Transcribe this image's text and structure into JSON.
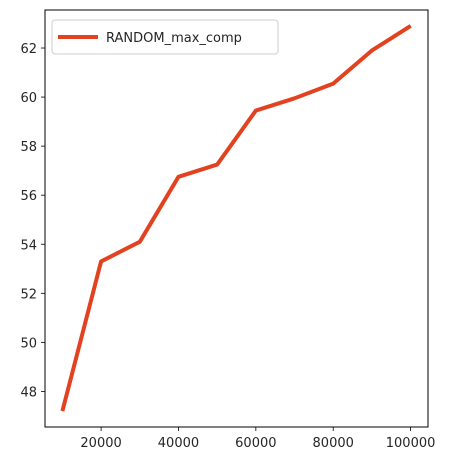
{
  "chart_data": {
    "type": "line",
    "x": [
      10000,
      20000,
      30000,
      40000,
      50000,
      60000,
      70000,
      80000,
      90000,
      100000
    ],
    "series": [
      {
        "name": "RANDOM_max_comp",
        "color": "#e2421f",
        "values": [
          47.2,
          53.3,
          54.1,
          56.75,
          57.25,
          59.45,
          59.95,
          60.55,
          61.9,
          62.9
        ]
      }
    ],
    "xlim": [
      5500,
      104500
    ],
    "ylim": [
      46.55,
      63.55
    ],
    "x_ticks": [
      20000,
      40000,
      60000,
      80000,
      100000
    ],
    "x_tick_labels": [
      "20000",
      "40000",
      "60000",
      "80000",
      "100000"
    ],
    "y_ticks": [
      48,
      50,
      52,
      54,
      56,
      58,
      60,
      62
    ],
    "y_tick_labels": [
      "48",
      "50",
      "52",
      "54",
      "56",
      "58",
      "60",
      "62"
    ],
    "grid": false,
    "legend_position": "top-left",
    "title": "",
    "xlabel": "",
    "ylabel": ""
  }
}
